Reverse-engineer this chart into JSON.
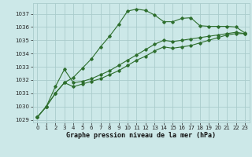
{
  "title": "Graphe pression niveau de la mer (hPa)",
  "bg_color": "#cce8e8",
  "grid_color": "#aacccc",
  "line_color": "#2d6e2d",
  "xlim": [
    -0.5,
    23.5
  ],
  "ylim": [
    1028.8,
    1037.8
  ],
  "yticks": [
    1029,
    1030,
    1031,
    1032,
    1033,
    1034,
    1035,
    1036,
    1037
  ],
  "xticks": [
    0,
    1,
    2,
    3,
    4,
    5,
    6,
    7,
    8,
    9,
    10,
    11,
    12,
    13,
    14,
    15,
    16,
    17,
    18,
    19,
    20,
    21,
    22,
    23
  ],
  "series1_x": [
    0,
    1,
    2,
    3,
    4,
    5,
    6,
    7,
    8,
    9,
    10,
    11,
    12,
    13,
    14,
    15,
    16,
    17,
    18,
    19,
    20,
    21,
    22,
    23
  ],
  "series1_y": [
    1029.2,
    1030.0,
    1031.0,
    1031.8,
    1032.2,
    1032.9,
    1033.6,
    1034.5,
    1035.3,
    1036.2,
    1037.2,
    1037.35,
    1037.25,
    1036.9,
    1036.4,
    1036.4,
    1036.65,
    1036.7,
    1036.1,
    1036.05,
    1036.05,
    1036.05,
    1036.0,
    1035.55
  ],
  "series2_x": [
    0,
    1,
    2,
    3,
    4,
    5,
    6,
    7,
    8,
    9,
    10,
    11,
    12,
    13,
    14,
    15,
    16,
    17,
    18,
    19,
    20,
    21,
    22,
    23
  ],
  "series2_y": [
    1029.2,
    1030.0,
    1031.5,
    1032.8,
    1031.8,
    1031.9,
    1032.1,
    1032.4,
    1032.7,
    1033.1,
    1033.5,
    1033.9,
    1034.3,
    1034.7,
    1035.0,
    1034.9,
    1035.0,
    1035.1,
    1035.2,
    1035.3,
    1035.4,
    1035.5,
    1035.6,
    1035.5
  ],
  "series3_x": [
    0,
    1,
    2,
    3,
    4,
    5,
    6,
    7,
    8,
    9,
    10,
    11,
    12,
    13,
    14,
    15,
    16,
    17,
    18,
    19,
    20,
    21,
    22,
    23
  ],
  "series3_y": [
    1029.2,
    1030.0,
    1031.0,
    1031.8,
    1031.5,
    1031.7,
    1031.9,
    1032.1,
    1032.4,
    1032.7,
    1033.1,
    1033.5,
    1033.8,
    1034.2,
    1034.5,
    1034.4,
    1034.5,
    1034.6,
    1034.8,
    1035.0,
    1035.2,
    1035.4,
    1035.5,
    1035.5
  ]
}
